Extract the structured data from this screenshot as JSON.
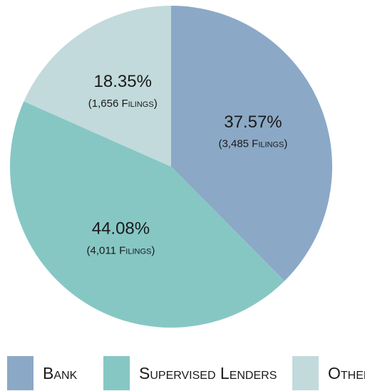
{
  "chart_data": {
    "type": "pie",
    "categories": [
      "Bank",
      "Supervised Lenders",
      "Other"
    ],
    "values": [
      37.57,
      44.08,
      18.35
    ],
    "value_labels": [
      "37.57%",
      "44.08%",
      "18.35%"
    ],
    "filing_labels": [
      "(3,485 Filings)",
      "(4,011 Filings)",
      "(1,656 Filings)"
    ],
    "colors": [
      "#8ba9c6",
      "#86c7c4",
      "#c2dadb"
    ],
    "legend": "bottom"
  }
}
